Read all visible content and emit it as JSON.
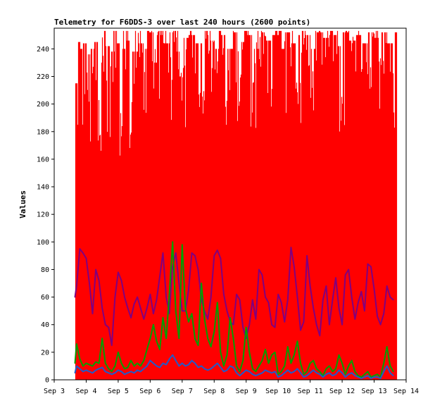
{
  "chart_data": {
    "type": "line",
    "title": "Telemetry for F6DDS-3 over last 240 hours (2600 points)",
    "xlabel": "",
    "ylabel": "Values",
    "xlim": [
      "Sep 3",
      "Sep 14"
    ],
    "ylim": [
      0,
      255
    ],
    "x_ticks": [
      "Sep 3",
      "Sep 4",
      "Sep 5",
      "Sep 6",
      "Sep 7",
      "Sep 8",
      "Sep 9",
      "Sep 10",
      "Sep 11",
      "Sep 12",
      "Sep 13",
      "Sep 14"
    ],
    "y_ticks": [
      0,
      20,
      40,
      60,
      80,
      100,
      120,
      140,
      160,
      180,
      200,
      220,
      240
    ],
    "grid": false,
    "legend": "none",
    "series": [
      {
        "color": "#ff0000",
        "style": "spiky",
        "x": [
          3.65,
          3.68,
          3.72,
          3.76,
          3.8,
          3.85,
          3.9,
          3.95,
          4.0,
          4.06,
          4.12,
          4.18,
          4.25,
          4.32,
          4.4,
          4.48,
          4.56,
          4.64,
          4.72,
          4.8,
          4.88,
          4.96,
          5.05,
          5.14,
          5.23,
          5.32,
          5.41,
          5.5,
          5.6,
          5.7,
          5.8,
          5.9,
          6.0,
          6.1,
          6.2,
          6.3,
          6.4,
          6.5,
          6.6,
          6.7,
          6.8,
          6.9,
          7.0,
          7.1,
          7.2,
          7.3,
          7.4,
          7.5,
          7.6,
          7.7,
          7.8,
          7.9,
          8.0,
          8.1,
          8.2,
          8.3,
          8.4,
          8.5,
          8.6,
          8.7,
          8.8,
          8.9,
          9.0,
          9.1,
          9.2,
          9.3,
          9.4,
          9.5,
          9.6,
          9.7,
          9.8,
          9.9,
          10.0,
          10.1,
          10.2,
          10.3,
          10.4,
          10.5,
          10.6,
          10.7,
          10.8,
          10.9,
          11.0,
          11.1,
          11.2,
          11.3,
          11.4,
          11.5,
          11.6,
          11.7,
          11.8,
          11.9,
          12.0,
          12.1,
          12.2,
          12.3,
          12.4,
          12.5,
          12.6,
          12.7,
          12.8,
          12.9,
          13.0,
          13.1,
          13.2,
          13.3,
          13.4,
          13.5,
          13.6,
          13.7
        ],
        "y": [
          125,
          215,
          160,
          245,
          190,
          240,
          175,
          244,
          210,
          236,
          165,
          240,
          200,
          245,
          150,
          230,
          215,
          242,
          170,
          238,
          205,
          244,
          160,
          240,
          222,
          246,
          168,
          238,
          215,
          244,
          180,
          240,
          252,
          230,
          195,
          250,
          212,
          244,
          175,
          252,
          238,
          220,
          180,
          248,
          230,
          250,
          200,
          244,
          165,
          250,
          235,
          246,
          190,
          240,
          224,
          250,
          176,
          240,
          210,
          252,
          185,
          245,
          232,
          250,
          170,
          240,
          220,
          252,
          200,
          246,
          176,
          250,
          236,
          240,
          190,
          252,
          212,
          244,
          168,
          250,
          235,
          250,
          194,
          240,
          222,
          252,
          178,
          248,
          240,
          250,
          206,
          242,
          176,
          252,
          236,
          246,
          198,
          250,
          212,
          244,
          176,
          252,
          240,
          248,
          190,
          252,
          222,
          244,
          180,
          252
        ]
      },
      {
        "color": "#800080",
        "x": [
          3.65,
          3.7,
          3.8,
          3.9,
          4.0,
          4.1,
          4.2,
          4.3,
          4.4,
          4.5,
          4.6,
          4.7,
          4.8,
          4.9,
          5.0,
          5.1,
          5.2,
          5.3,
          5.4,
          5.5,
          5.6,
          5.7,
          5.8,
          5.9,
          6.0,
          6.1,
          6.2,
          6.3,
          6.4,
          6.5,
          6.6,
          6.7,
          6.8,
          6.9,
          7.0,
          7.1,
          7.2,
          7.3,
          7.4,
          7.5,
          7.6,
          7.7,
          7.8,
          7.9,
          8.0,
          8.1,
          8.2,
          8.3,
          8.4,
          8.5,
          8.6,
          8.7,
          8.8,
          8.9,
          9.0,
          9.1,
          9.2,
          9.3,
          9.4,
          9.5,
          9.6,
          9.7,
          9.8,
          9.9,
          10.0,
          10.1,
          10.2,
          10.3,
          10.4,
          10.5,
          10.6,
          10.7,
          10.8,
          10.9,
          11.0,
          11.1,
          11.2,
          11.3,
          11.4,
          11.5,
          11.6,
          11.7,
          11.8,
          11.9,
          12.0,
          12.1,
          12.2,
          12.3,
          12.4,
          12.5,
          12.6,
          12.7,
          12.8,
          12.9,
          13.0,
          13.1,
          13.2,
          13.3,
          13.4,
          13.5,
          13.6
        ],
        "y": [
          60,
          68,
          95,
          92,
          88,
          70,
          48,
          80,
          72,
          52,
          40,
          38,
          25,
          60,
          78,
          72,
          60,
          52,
          45,
          55,
          60,
          52,
          44,
          52,
          62,
          48,
          58,
          75,
          92,
          60,
          48,
          82,
          92,
          70,
          50,
          50,
          65,
          92,
          90,
          80,
          58,
          50,
          44,
          60,
          90,
          94,
          88,
          62,
          50,
          42,
          40,
          62,
          58,
          38,
          30,
          40,
          58,
          44,
          80,
          76,
          60,
          56,
          40,
          38,
          62,
          56,
          42,
          58,
          96,
          82,
          60,
          36,
          42,
          90,
          68,
          52,
          40,
          32,
          58,
          68,
          40,
          58,
          74,
          52,
          40,
          76,
          80,
          60,
          44,
          56,
          64,
          50,
          84,
          82,
          66,
          46,
          40,
          48,
          68,
          60,
          58
        ]
      },
      {
        "color": "#00a000",
        "x": [
          3.65,
          3.7,
          3.8,
          3.9,
          4.0,
          4.1,
          4.2,
          4.3,
          4.4,
          4.5,
          4.6,
          4.7,
          4.8,
          4.9,
          5.0,
          5.1,
          5.2,
          5.3,
          5.4,
          5.5,
          5.6,
          5.7,
          5.8,
          5.9,
          6.0,
          6.1,
          6.2,
          6.3,
          6.4,
          6.5,
          6.6,
          6.7,
          6.8,
          6.9,
          7.0,
          7.1,
          7.2,
          7.3,
          7.4,
          7.5,
          7.6,
          7.7,
          7.8,
          7.9,
          8.0,
          8.1,
          8.2,
          8.3,
          8.4,
          8.5,
          8.6,
          8.7,
          8.8,
          8.9,
          9.0,
          9.1,
          9.2,
          9.3,
          9.4,
          9.5,
          9.6,
          9.7,
          9.8,
          9.9,
          10.0,
          10.1,
          10.2,
          10.3,
          10.4,
          10.5,
          10.6,
          10.7,
          10.8,
          10.9,
          11.0,
          11.1,
          11.2,
          11.3,
          11.4,
          11.5,
          11.6,
          11.7,
          11.8,
          11.9,
          12.0,
          12.1,
          12.2,
          12.3,
          12.4,
          12.5,
          12.6,
          12.7,
          12.8,
          12.9,
          13.0,
          13.1,
          13.2,
          13.3,
          13.4,
          13.5,
          13.6
        ],
        "y": [
          12,
          26,
          15,
          10,
          12,
          11,
          10,
          13,
          12,
          30,
          12,
          8,
          6,
          10,
          20,
          12,
          8,
          9,
          14,
          10,
          12,
          10,
          14,
          22,
          30,
          40,
          28,
          22,
          45,
          30,
          62,
          100,
          50,
          30,
          98,
          52,
          42,
          48,
          30,
          25,
          70,
          44,
          30,
          24,
          35,
          56,
          20,
          10,
          18,
          45,
          30,
          10,
          6,
          14,
          38,
          20,
          8,
          6,
          10,
          14,
          22,
          12,
          18,
          20,
          4,
          6,
          10,
          24,
          12,
          18,
          28,
          12,
          4,
          6,
          12,
          14,
          8,
          6,
          3,
          8,
          10,
          6,
          8,
          18,
          12,
          4,
          10,
          14,
          6,
          3,
          2,
          4,
          6,
          2,
          3,
          4,
          2,
          12,
          24,
          10,
          6
        ]
      },
      {
        "color": "#1e5ccc",
        "x": [
          3.65,
          3.7,
          3.8,
          3.9,
          4.0,
          4.1,
          4.2,
          4.3,
          4.4,
          4.5,
          4.6,
          4.7,
          4.8,
          4.9,
          5.0,
          5.1,
          5.2,
          5.3,
          5.4,
          5.5,
          5.6,
          5.7,
          5.8,
          5.9,
          6.0,
          6.1,
          6.2,
          6.3,
          6.4,
          6.5,
          6.6,
          6.7,
          6.8,
          6.9,
          7.0,
          7.1,
          7.2,
          7.3,
          7.4,
          7.5,
          7.6,
          7.7,
          7.8,
          7.9,
          8.0,
          8.1,
          8.2,
          8.3,
          8.4,
          8.5,
          8.6,
          8.7,
          8.8,
          8.9,
          9.0,
          9.1,
          9.2,
          9.3,
          9.4,
          9.5,
          9.6,
          9.7,
          9.8,
          9.9,
          10.0,
          10.1,
          10.2,
          10.3,
          10.4,
          10.5,
          10.6,
          10.7,
          10.8,
          10.9,
          11.0,
          11.1,
          11.2,
          11.3,
          11.4,
          11.5,
          11.6,
          11.7,
          11.8,
          11.9,
          12.0,
          12.1,
          12.2,
          12.3,
          12.4,
          12.5,
          12.6,
          12.7,
          12.8,
          12.9,
          13.0,
          13.1,
          13.2,
          13.3,
          13.4,
          13.5,
          13.6
        ],
        "y": [
          5,
          10,
          8,
          6,
          7,
          6,
          5,
          7,
          8,
          9,
          6,
          5,
          4,
          5,
          7,
          6,
          4,
          5,
          6,
          5,
          7,
          6,
          8,
          10,
          14,
          12,
          10,
          9,
          12,
          11,
          15,
          18,
          14,
          10,
          12,
          10,
          11,
          14,
          12,
          9,
          10,
          8,
          7,
          8,
          10,
          12,
          9,
          6,
          7,
          10,
          9,
          5,
          3,
          5,
          7,
          6,
          4,
          3,
          4,
          5,
          7,
          6,
          5,
          6,
          2,
          3,
          5,
          7,
          5,
          6,
          8,
          5,
          2,
          3,
          5,
          7,
          5,
          4,
          2,
          4,
          5,
          3,
          4,
          7,
          5,
          2,
          4,
          5,
          3,
          2,
          1,
          2,
          3,
          1,
          2,
          2,
          1,
          6,
          10,
          5,
          3
        ]
      }
    ]
  }
}
